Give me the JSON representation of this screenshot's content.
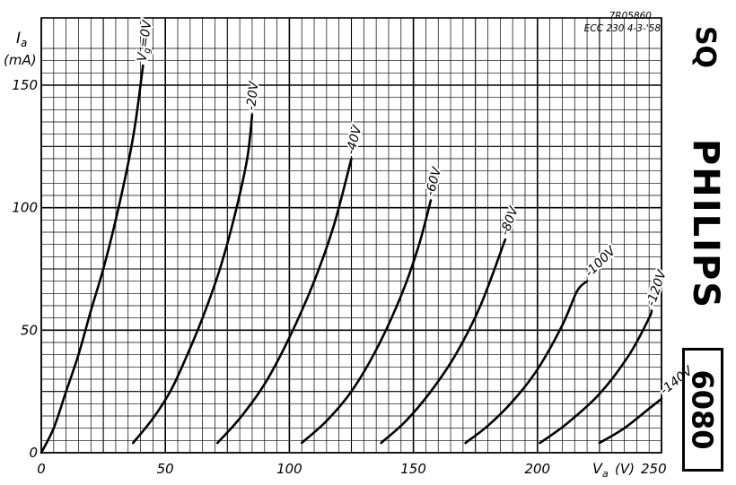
{
  "document": {
    "ref_number": "7R05860",
    "ref_code": "ECC 230  4-3-'58",
    "side_mark": "SQ",
    "brand": "PHILIPS",
    "tube_type": "6080"
  },
  "chart_data": {
    "type": "line",
    "title": "",
    "xlabel_symbol": "V",
    "xlabel_subscript": "a",
    "xlabel_unit": "(V)",
    "ylabel_symbol": "I",
    "ylabel_subscript": "a",
    "ylabel_unit": "(mA)",
    "xlim": [
      0,
      250
    ],
    "ylim": [
      0,
      165
    ],
    "x_ticks": [
      0,
      50,
      100,
      150,
      200,
      250
    ],
    "y_ticks": [
      0,
      50,
      100,
      150
    ],
    "x_tick_labels": [
      "0",
      "50",
      "100",
      "150",
      "200"
    ],
    "x_end_label": "250",
    "y_tick_labels": [
      "0",
      "50",
      "100",
      "150"
    ],
    "grid": true,
    "line_color": "#000000",
    "grid_color": "#000000",
    "series": [
      {
        "name": "Vg=0V",
        "label_prefix": "V",
        "label_sub": "g",
        "label_rest": "=0V",
        "points": [
          [
            0,
            0
          ],
          [
            5,
            10
          ],
          [
            10,
            25
          ],
          [
            15,
            40
          ],
          [
            20,
            58
          ],
          [
            25,
            75
          ],
          [
            30,
            95
          ],
          [
            35,
            118
          ],
          [
            38,
            135
          ],
          [
            41,
            158
          ]
        ]
      },
      {
        "name": "-20V",
        "label_prefix": "",
        "label_sub": "",
        "label_rest": "-20V",
        "points": [
          [
            37,
            4
          ],
          [
            45,
            14
          ],
          [
            52,
            25
          ],
          [
            58,
            38
          ],
          [
            65,
            55
          ],
          [
            72,
            75
          ],
          [
            78,
            97
          ],
          [
            83,
            120
          ],
          [
            85,
            138
          ]
        ]
      },
      {
        "name": "-40V",
        "label_prefix": "",
        "label_sub": "",
        "label_rest": "-40V",
        "points": [
          [
            71,
            4
          ],
          [
            80,
            14
          ],
          [
            90,
            28
          ],
          [
            100,
            47
          ],
          [
            110,
            70
          ],
          [
            118,
            93
          ],
          [
            125,
            120
          ]
        ]
      },
      {
        "name": "-60V",
        "label_prefix": "",
        "label_sub": "",
        "label_rest": "-60V",
        "points": [
          [
            105,
            4
          ],
          [
            115,
            13
          ],
          [
            125,
            25
          ],
          [
            135,
            42
          ],
          [
            145,
            64
          ],
          [
            152,
            84
          ],
          [
            157,
            103
          ]
        ]
      },
      {
        "name": "-80V",
        "label_prefix": "",
        "label_sub": "",
        "label_rest": "-80V",
        "points": [
          [
            137,
            4
          ],
          [
            147,
            13
          ],
          [
            157,
            25
          ],
          [
            167,
            40
          ],
          [
            177,
            60
          ],
          [
            187,
            87
          ]
        ]
      },
      {
        "name": "-100V",
        "label_prefix": "",
        "label_sub": "",
        "label_rest": "-100V",
        "points": [
          [
            171,
            4
          ],
          [
            180,
            11
          ],
          [
            190,
            21
          ],
          [
            200,
            34
          ],
          [
            210,
            52
          ],
          [
            216,
            66
          ],
          [
            220,
            70
          ]
        ]
      },
      {
        "name": "-120V",
        "label_prefix": "",
        "label_sub": "",
        "label_rest": "-120V",
        "points": [
          [
            201,
            4
          ],
          [
            212,
            12
          ],
          [
            225,
            24
          ],
          [
            237,
            40
          ],
          [
            245,
            55
          ],
          [
            246,
            58
          ]
        ]
      },
      {
        "name": "-140V",
        "label_prefix": "",
        "label_sub": "",
        "label_rest": "-140V",
        "points": [
          [
            225,
            4
          ],
          [
            235,
            10
          ],
          [
            245,
            18
          ],
          [
            250,
            22
          ]
        ]
      }
    ]
  }
}
